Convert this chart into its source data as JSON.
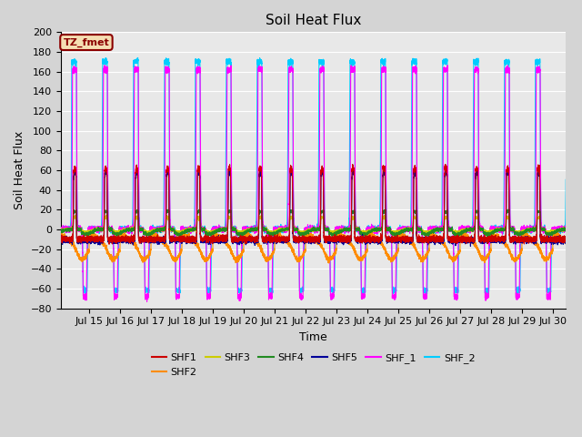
{
  "title": "Soil Heat Flux",
  "xlabel": "Time",
  "ylabel": "Soil Heat Flux",
  "ylim": [
    -80,
    200
  ],
  "xlim_days": [
    14.08,
    30.42
  ],
  "xtick_positions": [
    15,
    16,
    17,
    18,
    19,
    20,
    21,
    22,
    23,
    24,
    25,
    26,
    27,
    28,
    29,
    30
  ],
  "xtick_labels": [
    "Jul 15",
    "Jul 16",
    "Jul 17",
    "Jul 18",
    "Jul 19",
    "Jul 20",
    "Jul 21",
    "Jul 22",
    "Jul 23",
    "Jul 24",
    "Jul 25",
    "Jul 26",
    "Jul 27",
    "Jul 28",
    "Jul 29",
    "Jul 30"
  ],
  "ytick_positions": [
    -80,
    -60,
    -40,
    -20,
    0,
    20,
    40,
    60,
    80,
    100,
    120,
    140,
    160,
    180,
    200
  ],
  "annotation_text": "TZ_fmet",
  "annotation_bg": "#F5DEB3",
  "annotation_border": "#8B0000",
  "series_colors": {
    "SHF1": "#CC0000",
    "SHF2": "#FF8C00",
    "SHF3": "#CCCC00",
    "SHF4": "#228B22",
    "SHF5": "#000099",
    "SHF_1": "#FF00FF",
    "SHF_2": "#00CCFF"
  },
  "background_color": "#E8E8E8",
  "grid_color": "#FFFFFF",
  "title_fontsize": 11,
  "axis_label_fontsize": 9,
  "tick_fontsize": 8,
  "legend_fontsize": 8,
  "figsize": [
    6.4,
    4.8
  ],
  "dpi": 100
}
